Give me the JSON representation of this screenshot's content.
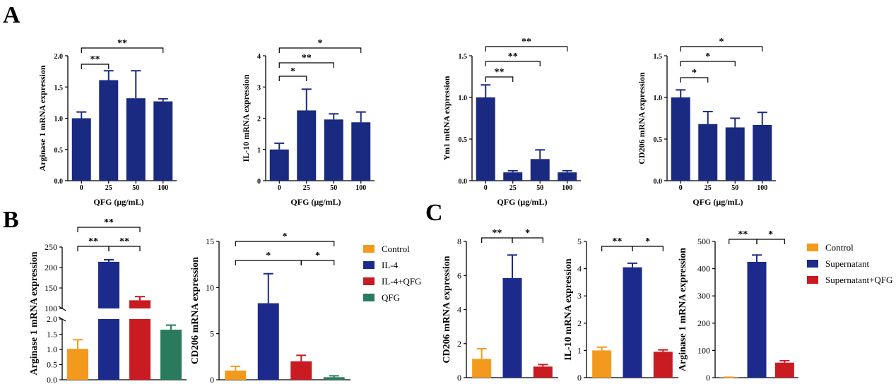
{
  "panels": {
    "A": "A",
    "B": "B",
    "C": "C"
  },
  "colors": {
    "navy": "#1a2a80",
    "orange": "#f39a1e",
    "blue": "#1c2a8c",
    "red": "#c81b22",
    "green": "#2a7a5e"
  },
  "legendB": [
    "Control",
    "IL-4",
    "IL-4+QFG",
    "QFG"
  ],
  "legendC": [
    "Control",
    "Supernatant",
    "Supernatant+QFG"
  ],
  "chart_data": [
    {
      "type": "bar",
      "panel": "A",
      "categories": [
        "0",
        "25",
        "50",
        "100"
      ],
      "values": [
        1.0,
        1.61,
        1.32,
        1.27
      ],
      "errors": [
        0.1,
        0.15,
        0.44,
        0.04
      ],
      "xlabel": "QFG (μg/mL)",
      "ylabel": "Arginase 1 mRNA expression",
      "ylim": [
        0,
        2.0
      ],
      "yticks": [
        "0.0",
        "0.5",
        "1.0",
        "1.5",
        "2.0"
      ],
      "sig": [
        {
          "from": 0,
          "to": 1,
          "label": "**"
        },
        {
          "from": 0,
          "to": 3,
          "label": "**"
        }
      ]
    },
    {
      "type": "bar",
      "panel": "A",
      "categories": [
        "0",
        "25",
        "50",
        "100"
      ],
      "values": [
        1.0,
        2.25,
        1.96,
        1.87
      ],
      "errors": [
        0.2,
        0.68,
        0.18,
        0.33
      ],
      "xlabel": "QFG (μg/mL)",
      "ylabel": "IL-10 mRNA expression",
      "ylim": [
        0,
        4
      ],
      "yticks": [
        "0",
        "1",
        "2",
        "3",
        "4"
      ],
      "sig": [
        {
          "from": 0,
          "to": 1,
          "label": "*"
        },
        {
          "from": 0,
          "to": 2,
          "label": "**"
        },
        {
          "from": 0,
          "to": 3,
          "label": "*"
        }
      ]
    },
    {
      "type": "bar",
      "panel": "A",
      "categories": [
        "0",
        "25",
        "50",
        "100"
      ],
      "values": [
        1.0,
        0.1,
        0.26,
        0.1
      ],
      "errors": [
        0.15,
        0.02,
        0.11,
        0.02
      ],
      "xlabel": "QFG (μg/mL)",
      "ylabel": "Ym1 mRNA expression",
      "ylim": [
        0,
        1.5
      ],
      "yticks": [
        "0.0",
        "0.5",
        "1.0",
        "1.5"
      ],
      "sig": [
        {
          "from": 0,
          "to": 1,
          "label": "**"
        },
        {
          "from": 0,
          "to": 2,
          "label": "**"
        },
        {
          "from": 0,
          "to": 3,
          "label": "**"
        }
      ]
    },
    {
      "type": "bar",
      "panel": "A",
      "categories": [
        "0",
        "25",
        "50",
        "100"
      ],
      "values": [
        1.0,
        0.68,
        0.64,
        0.67
      ],
      "errors": [
        0.09,
        0.15,
        0.11,
        0.15
      ],
      "xlabel": "QFG (μg/mL)",
      "ylabel": "CD206 mRNA expression",
      "ylim": [
        0,
        1.5
      ],
      "yticks": [
        "0.0",
        "0.5",
        "1.0",
        "1.5"
      ],
      "sig": [
        {
          "from": 0,
          "to": 1,
          "label": "*"
        },
        {
          "from": 0,
          "to": 2,
          "label": "*"
        },
        {
          "from": 0,
          "to": 3,
          "label": "*"
        }
      ]
    },
    {
      "type": "bar",
      "panel": "B",
      "broken_axis": true,
      "categories": [
        "Control",
        "IL-4",
        "IL-4+QFG",
        "QFG"
      ],
      "values": [
        1.02,
        214,
        120,
        1.65
      ],
      "errors": [
        0.3,
        5,
        9,
        0.15
      ],
      "ylabel": "Arginase 1 mRNA expression",
      "lower_ylim": [
        0,
        2.0
      ],
      "upper_ylim": [
        100,
        250
      ],
      "lower_yticks": [
        "0.0",
        "0.5",
        "1.0",
        "1.5",
        "2.0"
      ],
      "upper_yticks": [
        "100",
        "150",
        "200",
        "250"
      ],
      "sig": [
        {
          "from": 0,
          "to": 1,
          "label": "**"
        },
        {
          "from": 1,
          "to": 2,
          "label": "**"
        },
        {
          "from": 0,
          "to": 2,
          "label": "**"
        }
      ]
    },
    {
      "type": "bar",
      "panel": "B",
      "categories": [
        "Control",
        "IL-4",
        "IL-4+QFG",
        "QFG"
      ],
      "values": [
        1.0,
        8.3,
        2.0,
        0.28
      ],
      "errors": [
        0.45,
        3.2,
        0.65,
        0.15
      ],
      "ylabel": "CD206 mRNA expression",
      "ylim": [
        0,
        15
      ],
      "yticks": [
        "0",
        "5",
        "10",
        "15"
      ],
      "sig": [
        {
          "from": 0,
          "to": 2,
          "label": "*"
        },
        {
          "from": 2,
          "to": 3,
          "label": "*"
        },
        {
          "from": 0,
          "to": 3,
          "label": "*"
        }
      ]
    },
    {
      "type": "bar",
      "panel": "C",
      "categories": [
        "Control",
        "Supernatant",
        "Supernatant+QFG"
      ],
      "values": [
        1.1,
        5.85,
        0.65
      ],
      "errors": [
        0.6,
        1.35,
        0.12
      ],
      "ylabel": "CD206 mRNA expression",
      "ylim": [
        0,
        8
      ],
      "yticks": [
        "0",
        "2",
        "4",
        "6",
        "8"
      ],
      "sig": [
        {
          "from": 0,
          "to": 1,
          "label": "**"
        },
        {
          "from": 1,
          "to": 2,
          "label": "*"
        }
      ]
    },
    {
      "type": "bar",
      "panel": "C",
      "categories": [
        "Control",
        "Supernatant",
        "Supernatant+QFG"
      ],
      "values": [
        1.0,
        4.05,
        0.95
      ],
      "errors": [
        0.12,
        0.15,
        0.07
      ],
      "ylabel": "IL-10 mRNA expression",
      "ylim": [
        0,
        5
      ],
      "yticks": [
        "0",
        "1",
        "2",
        "3",
        "4",
        "5"
      ],
      "sig": [
        {
          "from": 0,
          "to": 1,
          "label": "**"
        },
        {
          "from": 1,
          "to": 2,
          "label": "*"
        }
      ]
    },
    {
      "type": "bar",
      "panel": "C",
      "categories": [
        "Control",
        "Supernatant",
        "Supernatant+QFG"
      ],
      "values": [
        1.0,
        425,
        55
      ],
      "errors": [
        0.5,
        25,
        7
      ],
      "ylabel": "Arginase 1 mRNA expression",
      "ylim": [
        0,
        500
      ],
      "yticks": [
        "0",
        "100",
        "200",
        "300",
        "400",
        "500"
      ],
      "sig": [
        {
          "from": 0,
          "to": 1,
          "label": "**"
        },
        {
          "from": 1,
          "to": 2,
          "label": "*"
        }
      ]
    }
  ]
}
